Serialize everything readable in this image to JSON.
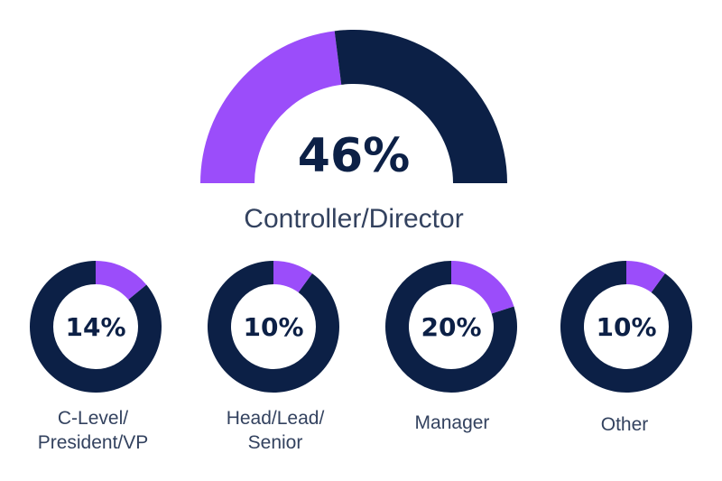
{
  "colors": {
    "highlight": "#9b4dfa",
    "remainder": "#0c2046",
    "value_text": "#0c2046",
    "label_text": "#33425f"
  },
  "chart_data": [
    {
      "type": "pie",
      "style": "semicircle-gauge",
      "value": 46,
      "value_label": "46%",
      "label_lines": [
        "Controller/Director"
      ]
    },
    {
      "type": "pie",
      "style": "donut",
      "value": 14,
      "value_label": "14%",
      "label_lines": [
        "C-Level/",
        "President/VP"
      ]
    },
    {
      "type": "pie",
      "style": "donut",
      "value": 10,
      "value_label": "10%",
      "label_lines": [
        "Head/Lead/",
        "Senior"
      ]
    },
    {
      "type": "pie",
      "style": "donut",
      "value": 20,
      "value_label": "20%",
      "label_lines": [
        "Manager"
      ]
    },
    {
      "type": "pie",
      "style": "donut",
      "value": 10,
      "value_label": "10%",
      "label_lines": [
        "Other"
      ]
    }
  ]
}
